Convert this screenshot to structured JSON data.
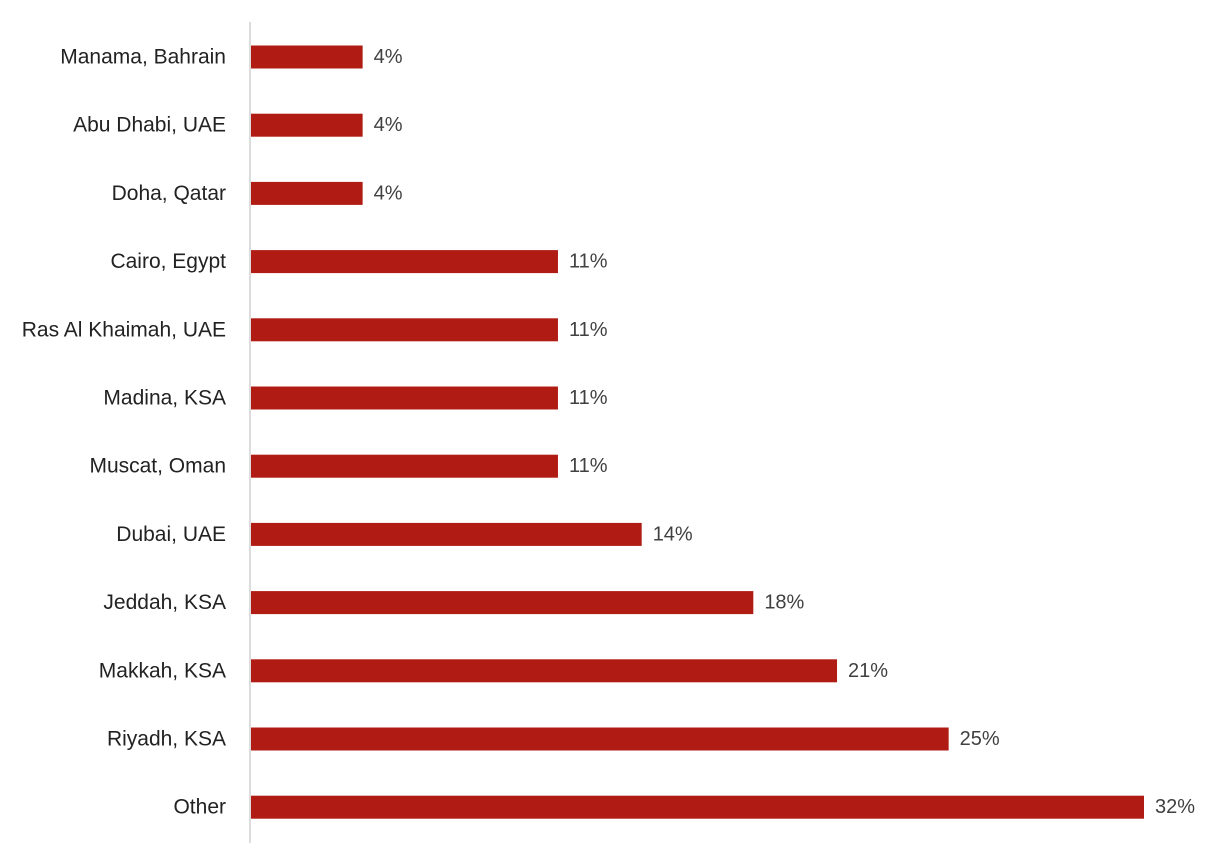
{
  "chart_data": {
    "type": "bar",
    "orientation": "horizontal",
    "categories": [
      "Manama, Bahrain",
      "Abu Dhabi, UAE",
      "Doha, Qatar",
      "Cairo, Egypt",
      "Ras Al Khaimah, UAE",
      "Madina, KSA",
      "Muscat, Oman",
      "Dubai, UAE",
      "Jeddah, KSA",
      "Makkah, KSA",
      "Riyadh, KSA",
      "Other"
    ],
    "values": [
      4,
      4,
      4,
      11,
      11,
      11,
      11,
      14,
      18,
      21,
      25,
      32
    ],
    "value_labels": [
      "4%",
      "4%",
      "4%",
      "11%",
      "11%",
      "11%",
      "11%",
      "14%",
      "18%",
      "21%",
      "25%",
      "32%"
    ],
    "unit": "%",
    "title": "",
    "xlabel": "",
    "ylabel": "",
    "xlim": [
      0,
      32
    ],
    "grid": false,
    "legend": "none",
    "bar_color": "#b01c14",
    "axis_color": "#d0d0d0"
  }
}
